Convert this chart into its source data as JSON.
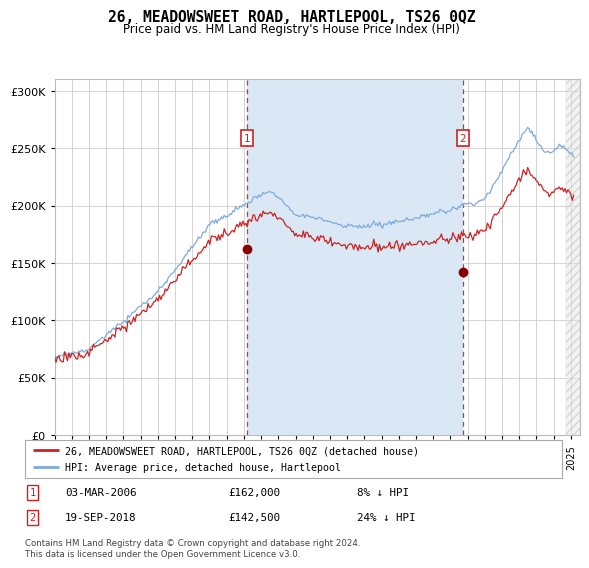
{
  "title": "26, MEADOWSWEET ROAD, HARTLEPOOL, TS26 0QZ",
  "subtitle": "Price paid vs. HM Land Registry's House Price Index (HPI)",
  "legend_line1": "26, MEADOWSWEET ROAD, HARTLEPOOL, TS26 0QZ (detached house)",
  "legend_line2": "HPI: Average price, detached house, Hartlepool",
  "footnote": "Contains HM Land Registry data © Crown copyright and database right 2024.\nThis data is licensed under the Open Government Licence v3.0.",
  "sale1_date": "03-MAR-2006",
  "sale1_price": "£162,000",
  "sale1_hpi": "8% ↓ HPI",
  "sale2_date": "19-SEP-2018",
  "sale2_price": "£142,500",
  "sale2_hpi": "24% ↓ HPI",
  "hpi_color": "#7faadd",
  "price_color": "#cc2222",
  "dot_color": "#880000",
  "vline_color": "#cc3333",
  "shade_color": "#dae8f5",
  "ylim": [
    0,
    310000
  ],
  "yticks": [
    0,
    50000,
    100000,
    150000,
    200000,
    250000,
    300000
  ],
  "xlim_start": 1995.0,
  "xlim_end": 2025.5,
  "sale1_x": 2006.17,
  "sale2_x": 2018.72,
  "sale1_y": 162000,
  "sale2_y": 142500
}
